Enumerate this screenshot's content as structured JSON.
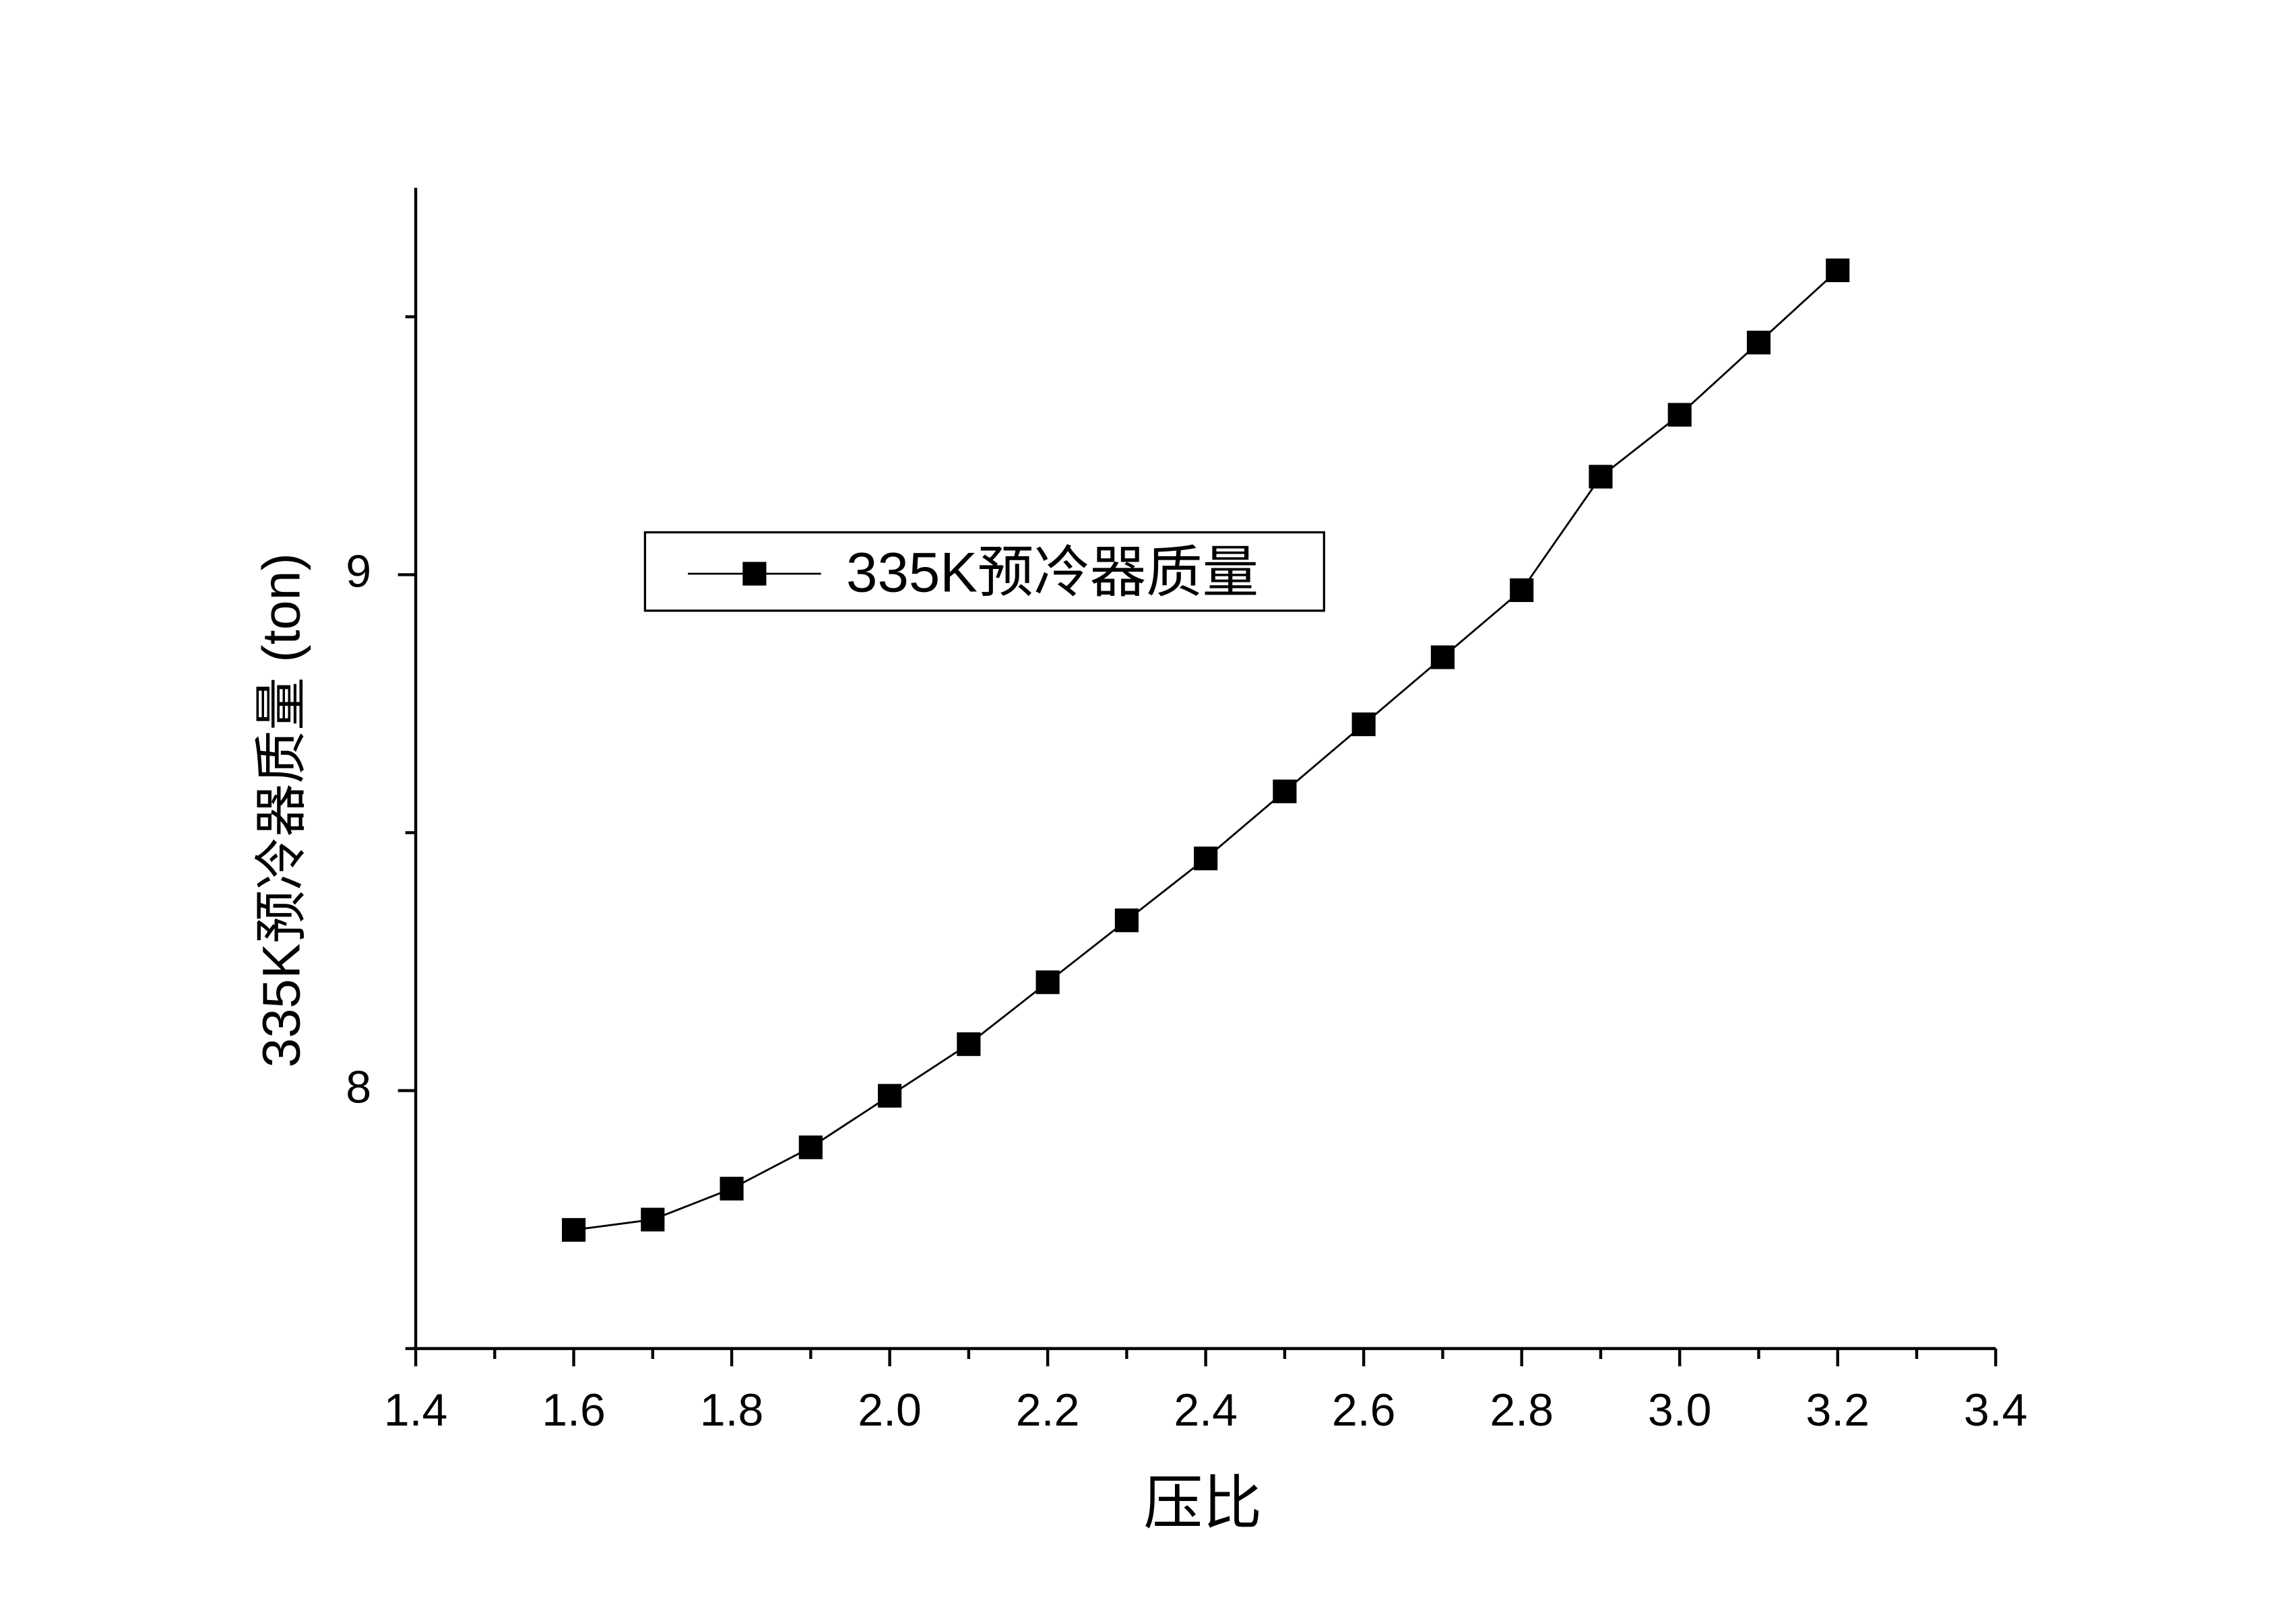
{
  "chart_data": {
    "type": "line",
    "x_label": "压比",
    "y_label": "335K预冷器质量 (ton)",
    "x": [
      1.6,
      1.7,
      1.8,
      1.9,
      2.0,
      2.1,
      2.2,
      2.3,
      2.4,
      2.5,
      2.6,
      2.7,
      2.8,
      2.9,
      3.0,
      3.1,
      3.2
    ],
    "series": [
      {
        "name": "335K预冷器质量",
        "color": "#000000",
        "values": [
          7.73,
          7.75,
          7.81,
          7.89,
          7.99,
          8.09,
          8.21,
          8.33,
          8.45,
          8.58,
          8.71,
          8.84,
          8.97,
          9.19,
          9.31,
          9.45,
          9.59
        ]
      }
    ],
    "xlim": [
      1.4,
      3.4
    ],
    "xticks": [
      {
        "value": 1.4,
        "label": "1.4"
      },
      {
        "value": 1.6,
        "label": "1.6"
      },
      {
        "value": 1.8,
        "label": "1.8"
      },
      {
        "value": 2.0,
        "label": "2.0"
      },
      {
        "value": 2.2,
        "label": "2.2"
      },
      {
        "value": 2.4,
        "label": "2.4"
      },
      {
        "value": 2.6,
        "label": "2.6"
      },
      {
        "value": 2.8,
        "label": "2.8"
      },
      {
        "value": 3.0,
        "label": "3.0"
      },
      {
        "value": 3.2,
        "label": "3.2"
      },
      {
        "value": 3.4,
        "label": "3.4"
      }
    ],
    "xminor_ticks": [
      1.5,
      1.7,
      1.9,
      2.1,
      2.3,
      2.5,
      2.7,
      2.9,
      3.1,
      3.3
    ],
    "ylim": [
      7.5,
      9.75
    ],
    "yticks": [
      8,
      9
    ],
    "yminor_ticks": [
      7.5,
      8.5,
      9.5
    ],
    "grid": false,
    "legend": "upper-left",
    "marker": "square"
  }
}
